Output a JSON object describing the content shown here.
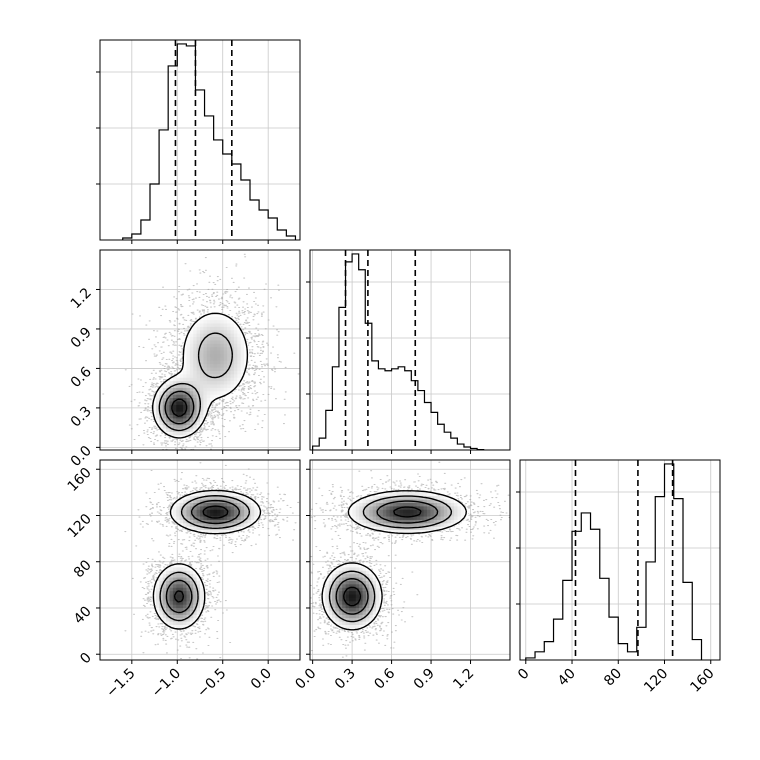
{
  "chart_data": {
    "type": "corner",
    "description_note": "",
    "grid": true,
    "parameters": [
      {
        "range": [
          -1.85,
          0.35
        ],
        "ticks": [
          -1.5,
          -1.0,
          -0.5,
          0.0
        ],
        "tick_labels": [
          "−1.5",
          "−1.0",
          "−0.5",
          "0.0"
        ]
      },
      {
        "range": [
          -0.02,
          1.5
        ],
        "ticks": [
          0.0,
          0.3,
          0.6,
          0.9,
          1.2
        ],
        "tick_labels": [
          "0.0",
          "0.3",
          "0.6",
          "0.9",
          "1.2"
        ]
      },
      {
        "range": [
          -5,
          168
        ],
        "ticks": [
          0,
          40,
          80,
          120,
          160
        ],
        "tick_labels": [
          "0",
          "40",
          "80",
          "120",
          "160"
        ]
      }
    ],
    "histograms": [
      {
        "param": 0,
        "quantiles": [
          -1.02,
          -0.8,
          -0.4
        ],
        "bin_edges": [
          -1.6,
          -1.5,
          -1.4,
          -1.3,
          -1.2,
          -1.1,
          -1.0,
          -0.9,
          -0.8,
          -0.7,
          -0.6,
          -0.5,
          -0.4,
          -0.3,
          -0.2,
          -0.1,
          0.0,
          0.1,
          0.2,
          0.3
        ],
        "counts": [
          0.01,
          0.03,
          0.1,
          0.28,
          0.55,
          0.87,
          0.98,
          0.97,
          0.75,
          0.62,
          0.5,
          0.43,
          0.38,
          0.3,
          0.2,
          0.15,
          0.11,
          0.05,
          0.02
        ]
      },
      {
        "param": 1,
        "quantiles": [
          0.25,
          0.42,
          0.78
        ],
        "bin_edges": [
          0.0,
          0.05,
          0.1,
          0.15,
          0.2,
          0.25,
          0.3,
          0.35,
          0.4,
          0.45,
          0.5,
          0.55,
          0.6,
          0.65,
          0.7,
          0.75,
          0.8,
          0.85,
          0.9,
          0.95,
          1.0,
          1.05,
          1.1,
          1.15,
          1.2,
          1.25,
          1.3
        ],
        "counts": [
          0.02,
          0.06,
          0.2,
          0.42,
          0.72,
          0.95,
          0.99,
          0.91,
          0.64,
          0.45,
          0.41,
          0.4,
          0.41,
          0.42,
          0.4,
          0.35,
          0.3,
          0.24,
          0.19,
          0.13,
          0.09,
          0.06,
          0.03,
          0.015,
          0.008,
          0.002
        ]
      },
      {
        "param": 2,
        "quantiles": [
          43,
          97,
          127
        ],
        "bin_edges": [
          0,
          8,
          16,
          24,
          32,
          40,
          48,
          56,
          64,
          72,
          80,
          88,
          96,
          104,
          112,
          120,
          128,
          136,
          144,
          152
        ],
        "counts": [
          0.01,
          0.04,
          0.09,
          0.2,
          0.39,
          0.63,
          0.72,
          0.64,
          0.4,
          0.21,
          0.08,
          0.04,
          0.16,
          0.48,
          0.8,
          0.96,
          0.79,
          0.38,
          0.1
        ]
      }
    ],
    "joint_2d": [
      {
        "x_param": 0,
        "y_param": 1,
        "modes": [
          {
            "x_mean": -0.98,
            "y_mean": 0.3,
            "x_sd": 0.14,
            "y_sd": 0.11,
            "weight": 0.45
          },
          {
            "x_mean": -0.58,
            "y_mean": 0.7,
            "x_sd": 0.22,
            "y_sd": 0.2,
            "weight": 0.55
          }
        ]
      },
      {
        "x_param": 0,
        "y_param": 2,
        "modes": [
          {
            "x_mean": -0.98,
            "y_mean": 50,
            "x_sd": 0.14,
            "y_sd": 14,
            "weight": 0.45
          },
          {
            "x_mean": -0.58,
            "y_mean": 123,
            "x_sd": 0.24,
            "y_sd": 9,
            "weight": 0.55
          }
        ]
      },
      {
        "x_param": 1,
        "y_param": 2,
        "modes": [
          {
            "x_mean": 0.3,
            "y_mean": 50,
            "x_sd": 0.11,
            "y_sd": 14,
            "weight": 0.45
          },
          {
            "x_mean": 0.72,
            "y_mean": 123,
            "x_sd": 0.22,
            "y_sd": 9,
            "weight": 0.55
          }
        ]
      }
    ],
    "y_tick_labels_row1": [
      "0.0",
      "0.3",
      "0.6",
      "0.9",
      "1.2"
    ],
    "y_tick_labels_row2": [
      "0",
      "40",
      "80",
      "120",
      "160"
    ]
  }
}
